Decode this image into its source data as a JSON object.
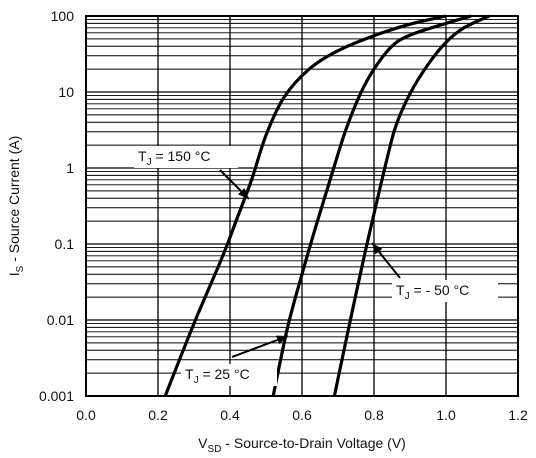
{
  "chart_data": {
    "type": "line",
    "title": "",
    "xlabel": {
      "main": "V",
      "sub": "SD",
      "rest": " - Source-to-Drain Voltage (V)"
    },
    "ylabel": {
      "main": "I",
      "sub": "S",
      "rest": " - Source Current (A)"
    },
    "xlim": [
      0,
      1.2
    ],
    "ylim": [
      0.001,
      100
    ],
    "yscale": "log",
    "grid": true,
    "x_ticks": [
      "0.0",
      "0.2",
      "0.4",
      "0.6",
      "0.8",
      "1.0",
      "1.2"
    ],
    "y_ticks": [
      "0.001",
      "0.01",
      "0.1",
      "1",
      "10",
      "100"
    ],
    "series": [
      {
        "id": "tj150",
        "label": {
          "pre": "T",
          "sub": "J",
          "post": " = 150 °C"
        },
        "x": [
          0.22,
          0.3,
          0.38,
          0.42,
          0.46,
          0.5,
          0.55,
          0.62,
          0.7,
          0.8,
          0.9,
          1.0
        ],
        "y": [
          0.001,
          0.009,
          0.07,
          0.22,
          0.7,
          2.7,
          8.5,
          20,
          35,
          55,
          78,
          100
        ]
      },
      {
        "id": "tj25",
        "label": {
          "pre": "T",
          "sub": "J",
          "post": " = 25 °C"
        },
        "x": [
          0.52,
          0.56,
          0.6,
          0.64,
          0.68,
          0.72,
          0.76,
          0.8,
          0.85,
          0.9,
          1.0,
          1.07
        ],
        "y": [
          0.001,
          0.008,
          0.04,
          0.18,
          0.75,
          3.0,
          9.0,
          20,
          40,
          56,
          80,
          100
        ]
      },
      {
        "id": "tjm50",
        "label": {
          "pre": "T",
          "sub": "J",
          "post": " = - 50 °C"
        },
        "x": [
          0.69,
          0.73,
          0.77,
          0.8,
          0.83,
          0.86,
          0.9,
          0.95,
          1.0,
          1.05,
          1.12
        ],
        "y": [
          0.001,
          0.008,
          0.06,
          0.25,
          1.0,
          3.5,
          9.5,
          23,
          45,
          70,
          100
        ]
      }
    ]
  }
}
